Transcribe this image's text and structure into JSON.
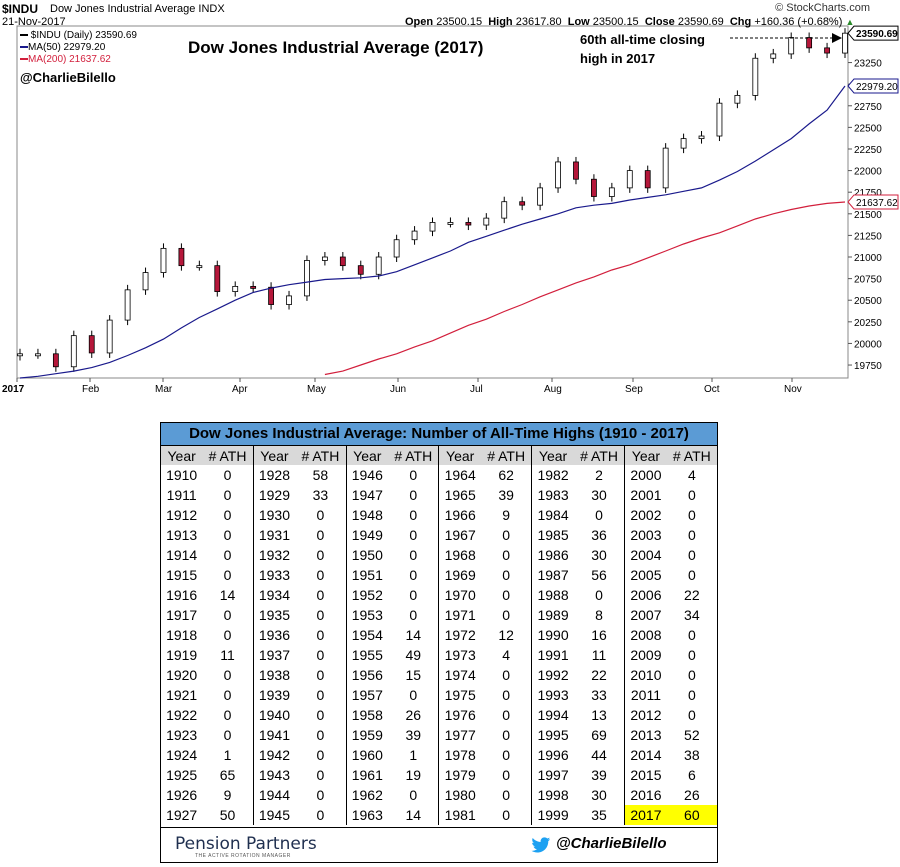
{
  "header": {
    "symbol": "$INDU",
    "name": "Dow Jones Industrial Average",
    "exchange": "INDX",
    "date": "21-Nov-2017",
    "open_label": "Open",
    "open": "23500.15",
    "high_label": "High",
    "high": "23617.80",
    "low_label": "Low",
    "low": "23500.15",
    "close_label": "Close",
    "close": "23590.69",
    "chg_label": "Chg",
    "chg": "+160.36 (+0.68%)",
    "brand": "© StockCharts.com"
  },
  "legend": {
    "price": "$INDU (Daily) 23590.69",
    "ma50": "MA(50) 22979.20",
    "ma200": "MA(200) 21637.62"
  },
  "title": "Dow Jones Industrial Average (2017)",
  "handle": "@CharlieBilello",
  "annotation": [
    "60th all-time closing",
    "high in 2017"
  ],
  "colors": {
    "ma50": "#1a1a8c",
    "ma200": "#d21f3c",
    "up": "#ffffff",
    "down": "#b5173a",
    "table_header": "#5b9bd5",
    "highlight": "#ffff00"
  },
  "chart_data": {
    "type": "line",
    "title": "Dow Jones Industrial Average (2017)",
    "xlabel": "",
    "ylabel": "",
    "x_ticks": [
      "2017",
      "Feb",
      "Mar",
      "Apr",
      "May",
      "Jun",
      "Jul",
      "Aug",
      "Sep",
      "Oct",
      "Nov"
    ],
    "y_ticks": [
      19750,
      20000,
      20250,
      20500,
      20750,
      21000,
      21250,
      21500,
      21750,
      22000,
      22250,
      22500,
      22750,
      23000,
      23250
    ],
    "ylim": [
      19600,
      23650
    ],
    "price_label": "23590.69",
    "ma50_label": "22979.20",
    "ma200_label": "21637.62",
    "x": [
      "Jan 3",
      "Jan 13",
      "Jan 20",
      "Jan 27",
      "Feb 3",
      "Feb 10",
      "Feb 17",
      "Feb 24",
      "Mar 1",
      "Mar 10",
      "Mar 17",
      "Mar 24",
      "Mar 31",
      "Apr 7",
      "Apr 13",
      "Apr 21",
      "Apr 28",
      "May 5",
      "May 12",
      "May 19",
      "May 26",
      "Jun 2",
      "Jun 9",
      "Jun 16",
      "Jun 23",
      "Jun 30",
      "Jul 7",
      "Jul 14",
      "Jul 21",
      "Jul 28",
      "Aug 4",
      "Aug 11",
      "Aug 18",
      "Aug 25",
      "Sep 1",
      "Sep 8",
      "Sep 15",
      "Sep 22",
      "Sep 29",
      "Oct 6",
      "Oct 13",
      "Oct 20",
      "Oct 27",
      "Nov 3",
      "Nov 10",
      "Nov 17",
      "Nov 21"
    ],
    "series": [
      {
        "name": "$INDU (Daily)",
        "values": [
          19880,
          19880,
          19730,
          20090,
          19890,
          20270,
          20620,
          20820,
          21100,
          20900,
          20900,
          20600,
          20660,
          20650,
          20450,
          20550,
          20960,
          21000,
          20900,
          20800,
          21000,
          21200,
          21300,
          21400,
          21400,
          21370,
          21450,
          21640,
          21600,
          21800,
          22100,
          21900,
          21700,
          21800,
          22000,
          21800,
          22260,
          22370,
          22400,
          22780,
          22870,
          23300,
          23350,
          23540,
          23420,
          23360,
          23590
        ]
      },
      {
        "name": "MA(50)",
        "values": [
          19600,
          19620,
          19650,
          19680,
          19720,
          19780,
          19860,
          19950,
          20050,
          20180,
          20300,
          20400,
          20500,
          20590,
          20640,
          20680,
          20710,
          20740,
          20750,
          20760,
          20780,
          20830,
          20910,
          20990,
          21070,
          21170,
          21240,
          21310,
          21380,
          21440,
          21500,
          21570,
          21600,
          21620,
          21660,
          21690,
          21720,
          21760,
          21800,
          21890,
          21990,
          22110,
          22240,
          22370,
          22540,
          22700,
          22979
        ]
      },
      {
        "name": "MA(200)",
        "values": [
          null,
          null,
          null,
          null,
          null,
          null,
          null,
          null,
          null,
          null,
          null,
          null,
          null,
          null,
          null,
          null,
          null,
          19640,
          19680,
          19750,
          19820,
          19880,
          19960,
          20030,
          20120,
          20210,
          20280,
          20370,
          20450,
          20540,
          20620,
          20700,
          20770,
          20850,
          20910,
          20990,
          21070,
          21150,
          21220,
          21280,
          21360,
          21440,
          21500,
          21550,
          21590,
          21620,
          21637
        ]
      }
    ]
  },
  "table": {
    "title": "Dow Jones Industrial Average: Number of All-Time Highs (1910 - 2017)",
    "col_year": "Year",
    "col_ath": "# ATH",
    "columns": [
      [
        [
          "1910",
          "0"
        ],
        [
          "1911",
          "0"
        ],
        [
          "1912",
          "0"
        ],
        [
          "1913",
          "0"
        ],
        [
          "1914",
          "0"
        ],
        [
          "1915",
          "0"
        ],
        [
          "1916",
          "14"
        ],
        [
          "1917",
          "0"
        ],
        [
          "1918",
          "0"
        ],
        [
          "1919",
          "11"
        ],
        [
          "1920",
          "0"
        ],
        [
          "1921",
          "0"
        ],
        [
          "1922",
          "0"
        ],
        [
          "1923",
          "0"
        ],
        [
          "1924",
          "1"
        ],
        [
          "1925",
          "65"
        ],
        [
          "1926",
          "9"
        ],
        [
          "1927",
          "50"
        ]
      ],
      [
        [
          "1928",
          "58"
        ],
        [
          "1929",
          "33"
        ],
        [
          "1930",
          "0"
        ],
        [
          "1931",
          "0"
        ],
        [
          "1932",
          "0"
        ],
        [
          "1933",
          "0"
        ],
        [
          "1934",
          "0"
        ],
        [
          "1935",
          "0"
        ],
        [
          "1936",
          "0"
        ],
        [
          "1937",
          "0"
        ],
        [
          "1938",
          "0"
        ],
        [
          "1939",
          "0"
        ],
        [
          "1940",
          "0"
        ],
        [
          "1941",
          "0"
        ],
        [
          "1942",
          "0"
        ],
        [
          "1943",
          "0"
        ],
        [
          "1944",
          "0"
        ],
        [
          "1945",
          "0"
        ]
      ],
      [
        [
          "1946",
          "0"
        ],
        [
          "1947",
          "0"
        ],
        [
          "1948",
          "0"
        ],
        [
          "1949",
          "0"
        ],
        [
          "1950",
          "0"
        ],
        [
          "1951",
          "0"
        ],
        [
          "1952",
          "0"
        ],
        [
          "1953",
          "0"
        ],
        [
          "1954",
          "14"
        ],
        [
          "1955",
          "49"
        ],
        [
          "1956",
          "15"
        ],
        [
          "1957",
          "0"
        ],
        [
          "1958",
          "26"
        ],
        [
          "1959",
          "39"
        ],
        [
          "1960",
          "1"
        ],
        [
          "1961",
          "19"
        ],
        [
          "1962",
          "0"
        ],
        [
          "1963",
          "14"
        ]
      ],
      [
        [
          "1964",
          "62"
        ],
        [
          "1965",
          "39"
        ],
        [
          "1966",
          "9"
        ],
        [
          "1967",
          "0"
        ],
        [
          "1968",
          "0"
        ],
        [
          "1969",
          "0"
        ],
        [
          "1970",
          "0"
        ],
        [
          "1971",
          "0"
        ],
        [
          "1972",
          "12"
        ],
        [
          "1973",
          "4"
        ],
        [
          "1974",
          "0"
        ],
        [
          "1975",
          "0"
        ],
        [
          "1976",
          "0"
        ],
        [
          "1977",
          "0"
        ],
        [
          "1978",
          "0"
        ],
        [
          "1979",
          "0"
        ],
        [
          "1980",
          "0"
        ],
        [
          "1981",
          "0"
        ]
      ],
      [
        [
          "1982",
          "2"
        ],
        [
          "1983",
          "30"
        ],
        [
          "1984",
          "0"
        ],
        [
          "1985",
          "36"
        ],
        [
          "1986",
          "30"
        ],
        [
          "1987",
          "56"
        ],
        [
          "1988",
          "0"
        ],
        [
          "1989",
          "8"
        ],
        [
          "1990",
          "16"
        ],
        [
          "1991",
          "11"
        ],
        [
          "1992",
          "22"
        ],
        [
          "1993",
          "33"
        ],
        [
          "1994",
          "13"
        ],
        [
          "1995",
          "69"
        ],
        [
          "1996",
          "44"
        ],
        [
          "1997",
          "39"
        ],
        [
          "1998",
          "30"
        ],
        [
          "1999",
          "35"
        ]
      ],
      [
        [
          "2000",
          "4"
        ],
        [
          "2001",
          "0"
        ],
        [
          "2002",
          "0"
        ],
        [
          "2003",
          "0"
        ],
        [
          "2004",
          "0"
        ],
        [
          "2005",
          "0"
        ],
        [
          "2006",
          "22"
        ],
        [
          "2007",
          "34"
        ],
        [
          "2008",
          "0"
        ],
        [
          "2009",
          "0"
        ],
        [
          "2010",
          "0"
        ],
        [
          "2011",
          "0"
        ],
        [
          "2012",
          "0"
        ],
        [
          "2013",
          "52"
        ],
        [
          "2014",
          "38"
        ],
        [
          "2015",
          "6"
        ],
        [
          "2016",
          "26"
        ],
        [
          "2017",
          "60"
        ]
      ]
    ],
    "highlight_year": "2017"
  },
  "footer": {
    "logo": "Pension Partners",
    "logo_sub": "THE ACTIVE ROTATION MANAGER",
    "twitter_icon": "twitter-bird-icon",
    "twitter": "@CharlieBilello"
  }
}
